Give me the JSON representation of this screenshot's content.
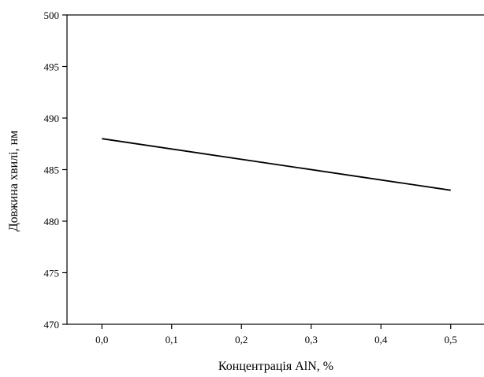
{
  "chart_data": {
    "type": "line",
    "title": "",
    "xlabel": "Концентрація AlN, %",
    "ylabel": "Довжина хвилі, нм",
    "xlim": [
      -0.05,
      0.55
    ],
    "ylim": [
      470,
      500
    ],
    "x_ticks": [
      0.0,
      0.1,
      0.2,
      0.3,
      0.4,
      0.5
    ],
    "x_tick_labels": [
      "0,0",
      "0,1",
      "0,2",
      "0,3",
      "0,4",
      "0,5"
    ],
    "y_ticks": [
      470,
      475,
      480,
      485,
      490,
      495,
      500
    ],
    "y_tick_labels": [
      "470",
      "475",
      "480",
      "485",
      "490",
      "495",
      "500"
    ],
    "grid": false,
    "legend": "none",
    "series": [
      {
        "x": [
          0.0,
          0.5
        ],
        "y": [
          488,
          483
        ],
        "color": "#000000"
      }
    ]
  }
}
